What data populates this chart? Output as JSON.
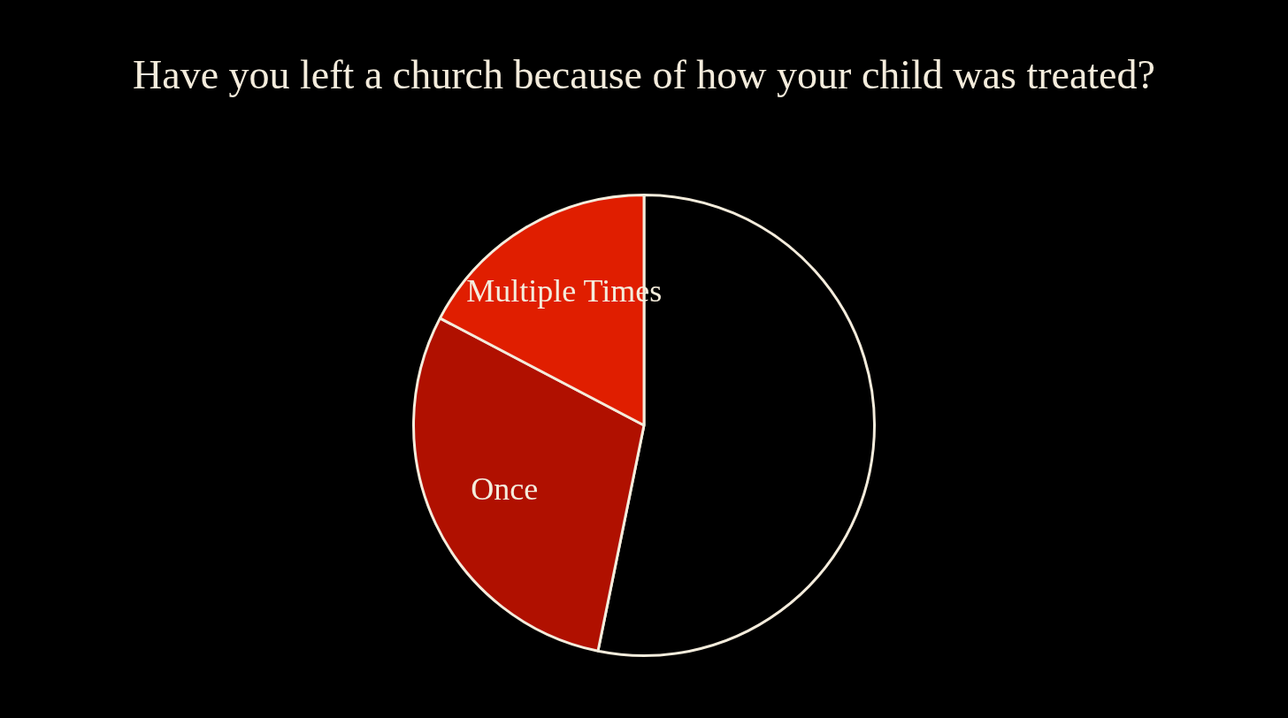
{
  "chart_data": {
    "type": "pie",
    "title": "Have you left a church because of how your child was treated?",
    "categories": [
      null,
      "Once",
      "Multiple Times"
    ],
    "values": [
      53.2,
      29.5,
      17.3
    ],
    "colors": [
      "#000000",
      "#b01000",
      "#e01e00"
    ],
    "legend": false
  }
}
